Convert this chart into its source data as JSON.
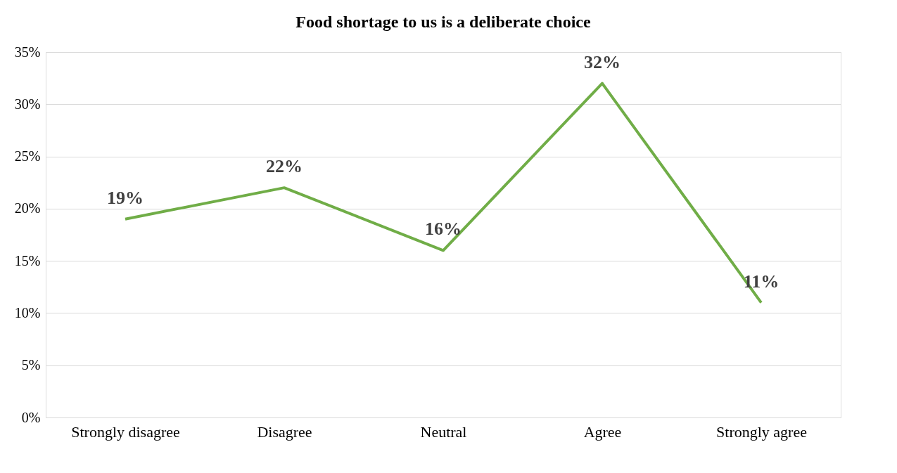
{
  "chart_data": {
    "type": "line",
    "title": "Food shortage to us is a deliberate choice",
    "categories": [
      "Strongly disagree",
      "Disagree",
      "Neutral",
      "Agree",
      "Strongly agree"
    ],
    "series": [
      {
        "color": "#70ad47",
        "values": [
          19,
          22,
          16,
          32,
          11
        ]
      }
    ],
    "value_labels": [
      "19%",
      "22%",
      "16%",
      "32%",
      "11%"
    ],
    "ylim": [
      0,
      35
    ],
    "yticks": [
      {
        "value": 0,
        "label": "0%"
      },
      {
        "value": 5,
        "label": "5%"
      },
      {
        "value": 10,
        "label": "10%"
      },
      {
        "value": 15,
        "label": "15%"
      },
      {
        "value": 20,
        "label": "20%"
      },
      {
        "value": 25,
        "label": "25%"
      },
      {
        "value": 30,
        "label": "30%"
      },
      {
        "value": 35,
        "label": "35%"
      }
    ],
    "grid": "y",
    "marker": "none",
    "line_style": "solid"
  }
}
